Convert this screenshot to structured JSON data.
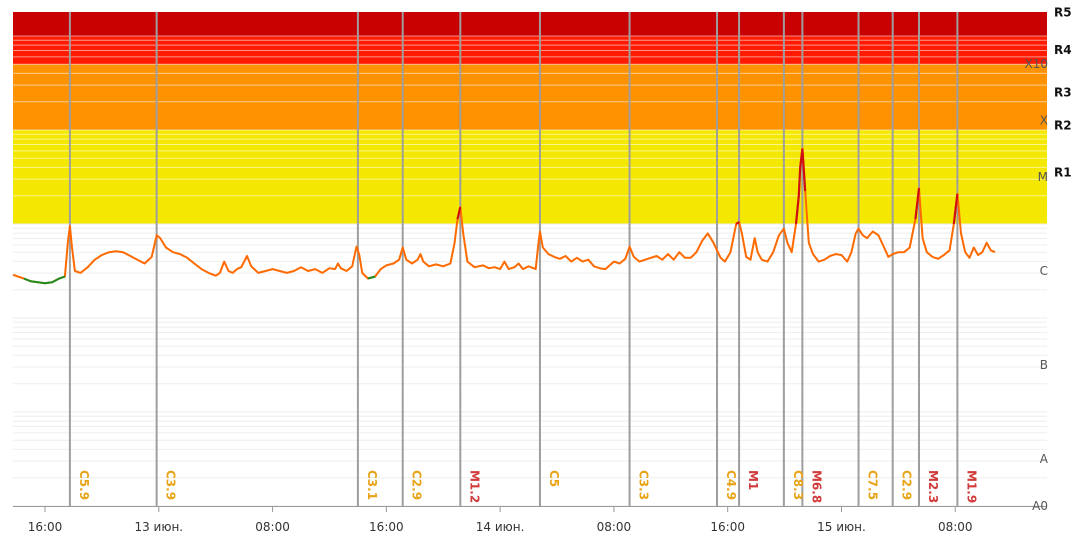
{
  "chart_data": {
    "type": "line",
    "scale": "log",
    "ylim": [
      -8,
      -3
    ],
    "class_labels": [
      {
        "label": "A0",
        "value": -8
      },
      {
        "label": "A",
        "value": -7.5
      },
      {
        "label": "B",
        "value": -6.5
      },
      {
        "label": "C",
        "value": -5.5
      },
      {
        "label": "M",
        "value": -4.5
      },
      {
        "label": "X",
        "value": -3.9
      },
      {
        "label": "X10",
        "value": -3.3
      }
    ],
    "radio_blackout_labels": [
      {
        "label": "R1",
        "value": -4.45
      },
      {
        "label": "R2",
        "value": -3.95
      },
      {
        "label": "R3",
        "value": -3.6
      },
      {
        "label": "R4",
        "value": -3.15
      },
      {
        "label": "R5",
        "value": -2.75
      }
    ],
    "bands": [
      {
        "from": -5.0,
        "to": -4.0,
        "color": "#f5e800"
      },
      {
        "from": -4.0,
        "to": -3.3,
        "color": "#ff9200"
      },
      {
        "from": -3.3,
        "to": -3.0,
        "color": "#ff1a00"
      },
      {
        "from": -3.0,
        "to": -2.4,
        "color": "#c80000"
      }
    ],
    "x_ticks": [
      "16:00",
      "13 июн.",
      "08:00",
      "16:00",
      "14 июн.",
      "08:00",
      "16:00",
      "15 июн.",
      "08:00"
    ],
    "x_tick_hours": [
      16,
      24,
      32,
      40,
      48,
      56,
      64,
      72,
      80
    ],
    "xlim_hours": [
      13.75,
      86.45
    ],
    "flares": [
      {
        "label": "C5.9",
        "t": 17.75,
        "class": "C"
      },
      {
        "label": "C3.9",
        "t": 23.85,
        "class": "C"
      },
      {
        "label": "C3.1",
        "t": 38.0,
        "class": "C"
      },
      {
        "label": "C2.9",
        "t": 41.15,
        "class": "C"
      },
      {
        "label": "M1.2",
        "t": 45.2,
        "class": "M"
      },
      {
        "label": "C5",
        "t": 50.8,
        "class": "C"
      },
      {
        "label": "C3.3",
        "t": 57.1,
        "class": "C"
      },
      {
        "label": "C4.9",
        "t": 63.25,
        "class": "C"
      },
      {
        "label": "M1",
        "t": 64.8,
        "class": "M"
      },
      {
        "label": "C8.3",
        "t": 67.95,
        "class": "C"
      },
      {
        "label": "M6.8",
        "t": 69.25,
        "class": "M"
      },
      {
        "label": "C7.5",
        "t": 73.2,
        "class": "C"
      },
      {
        "label": "C2.9",
        "t": 75.6,
        "class": "C"
      },
      {
        "label": "M2.3",
        "t": 77.45,
        "class": "M"
      },
      {
        "label": "M1.9",
        "t": 80.15,
        "class": "M"
      }
    ],
    "series": [
      {
        "color": "#ff6a00",
        "points": [
          [
            13.75,
            -5.54
          ],
          [
            14.5,
            -5.58
          ],
          [
            15.0,
            -5.61
          ],
          [
            15.5,
            -5.62
          ],
          [
            16.0,
            -5.63
          ],
          [
            16.5,
            -5.62
          ],
          [
            17.0,
            -5.58
          ],
          [
            17.4,
            -5.56
          ],
          [
            17.6,
            -5.2
          ],
          [
            17.75,
            -5.02
          ],
          [
            17.9,
            -5.25
          ],
          [
            18.1,
            -5.5
          ],
          [
            18.5,
            -5.52
          ],
          [
            19.0,
            -5.46
          ],
          [
            19.5,
            -5.38
          ],
          [
            20.0,
            -5.33
          ],
          [
            20.5,
            -5.3
          ],
          [
            21.0,
            -5.29
          ],
          [
            21.5,
            -5.3
          ],
          [
            22.0,
            -5.34
          ],
          [
            22.5,
            -5.38
          ],
          [
            23.0,
            -5.42
          ],
          [
            23.5,
            -5.35
          ],
          [
            23.85,
            -5.12
          ],
          [
            24.1,
            -5.15
          ],
          [
            24.5,
            -5.25
          ],
          [
            25.0,
            -5.3
          ],
          [
            25.5,
            -5.32
          ],
          [
            26.0,
            -5.36
          ],
          [
            26.5,
            -5.42
          ],
          [
            27.0,
            -5.48
          ],
          [
            27.5,
            -5.52
          ],
          [
            28.0,
            -5.55
          ],
          [
            28.3,
            -5.52
          ],
          [
            28.6,
            -5.4
          ],
          [
            28.9,
            -5.5
          ],
          [
            29.2,
            -5.52
          ],
          [
            29.5,
            -5.48
          ],
          [
            29.8,
            -5.46
          ],
          [
            30.2,
            -5.34
          ],
          [
            30.5,
            -5.45
          ],
          [
            31.0,
            -5.52
          ],
          [
            31.5,
            -5.5
          ],
          [
            32.0,
            -5.48
          ],
          [
            32.5,
            -5.5
          ],
          [
            33.0,
            -5.52
          ],
          [
            33.5,
            -5.5
          ],
          [
            34.0,
            -5.46
          ],
          [
            34.5,
            -5.5
          ],
          [
            35.0,
            -5.48
          ],
          [
            35.5,
            -5.52
          ],
          [
            36.0,
            -5.47
          ],
          [
            36.4,
            -5.48
          ],
          [
            36.6,
            -5.42
          ],
          [
            36.8,
            -5.47
          ],
          [
            37.2,
            -5.5
          ],
          [
            37.6,
            -5.45
          ],
          [
            37.9,
            -5.24
          ],
          [
            38.1,
            -5.33
          ],
          [
            38.3,
            -5.52
          ],
          [
            38.7,
            -5.58
          ],
          [
            39.2,
            -5.56
          ],
          [
            39.6,
            -5.48
          ],
          [
            40.0,
            -5.44
          ],
          [
            40.5,
            -5.42
          ],
          [
            40.9,
            -5.38
          ],
          [
            41.15,
            -5.25
          ],
          [
            41.4,
            -5.38
          ],
          [
            41.8,
            -5.42
          ],
          [
            42.2,
            -5.38
          ],
          [
            42.4,
            -5.32
          ],
          [
            42.6,
            -5.4
          ],
          [
            43.0,
            -5.45
          ],
          [
            43.5,
            -5.43
          ],
          [
            44.0,
            -5.45
          ],
          [
            44.5,
            -5.42
          ],
          [
            44.8,
            -5.2
          ],
          [
            45.0,
            -4.95
          ],
          [
            45.2,
            -4.82
          ],
          [
            45.4,
            -5.1
          ],
          [
            45.7,
            -5.4
          ],
          [
            46.2,
            -5.46
          ],
          [
            46.8,
            -5.44
          ],
          [
            47.2,
            -5.47
          ],
          [
            47.6,
            -5.46
          ],
          [
            48.0,
            -5.48
          ],
          [
            48.3,
            -5.4
          ],
          [
            48.6,
            -5.48
          ],
          [
            49.0,
            -5.46
          ],
          [
            49.3,
            -5.42
          ],
          [
            49.6,
            -5.48
          ],
          [
            50.0,
            -5.45
          ],
          [
            50.5,
            -5.48
          ],
          [
            50.7,
            -5.2
          ],
          [
            50.8,
            -5.08
          ],
          [
            51.0,
            -5.25
          ],
          [
            51.4,
            -5.32
          ],
          [
            51.8,
            -5.35
          ],
          [
            52.2,
            -5.37
          ],
          [
            52.6,
            -5.34
          ],
          [
            53.0,
            -5.4
          ],
          [
            53.4,
            -5.36
          ],
          [
            53.8,
            -5.4
          ],
          [
            54.2,
            -5.38
          ],
          [
            54.6,
            -5.45
          ],
          [
            55.0,
            -5.47
          ],
          [
            55.4,
            -5.48
          ],
          [
            55.7,
            -5.44
          ],
          [
            56.0,
            -5.4
          ],
          [
            56.4,
            -5.42
          ],
          [
            56.8,
            -5.37
          ],
          [
            57.1,
            -5.24
          ],
          [
            57.4,
            -5.35
          ],
          [
            57.8,
            -5.4
          ],
          [
            58.2,
            -5.38
          ],
          [
            58.6,
            -5.36
          ],
          [
            59.0,
            -5.34
          ],
          [
            59.4,
            -5.38
          ],
          [
            59.8,
            -5.32
          ],
          [
            60.2,
            -5.38
          ],
          [
            60.6,
            -5.3
          ],
          [
            61.0,
            -5.36
          ],
          [
            61.4,
            -5.36
          ],
          [
            61.8,
            -5.3
          ],
          [
            62.2,
            -5.18
          ],
          [
            62.6,
            -5.1
          ],
          [
            63.0,
            -5.2
          ],
          [
            63.25,
            -5.28
          ],
          [
            63.5,
            -5.36
          ],
          [
            63.8,
            -5.4
          ],
          [
            64.2,
            -5.3
          ],
          [
            64.6,
            -5.0
          ],
          [
            64.8,
            -4.98
          ],
          [
            65.0,
            -5.1
          ],
          [
            65.3,
            -5.35
          ],
          [
            65.6,
            -5.38
          ],
          [
            65.9,
            -5.15
          ],
          [
            66.1,
            -5.3
          ],
          [
            66.4,
            -5.38
          ],
          [
            66.8,
            -5.4
          ],
          [
            67.2,
            -5.3
          ],
          [
            67.6,
            -5.12
          ],
          [
            67.95,
            -5.05
          ],
          [
            68.2,
            -5.2
          ],
          [
            68.5,
            -5.3
          ],
          [
            68.8,
            -5.0
          ],
          [
            69.0,
            -4.7
          ],
          [
            69.1,
            -4.4
          ],
          [
            69.25,
            -4.2
          ],
          [
            69.45,
            -4.65
          ],
          [
            69.7,
            -5.2
          ],
          [
            70.0,
            -5.32
          ],
          [
            70.4,
            -5.4
          ],
          [
            70.8,
            -5.38
          ],
          [
            71.2,
            -5.34
          ],
          [
            71.6,
            -5.32
          ],
          [
            72.0,
            -5.33
          ],
          [
            72.4,
            -5.4
          ],
          [
            72.7,
            -5.3
          ],
          [
            73.0,
            -5.1
          ],
          [
            73.2,
            -5.05
          ],
          [
            73.5,
            -5.12
          ],
          [
            73.8,
            -5.15
          ],
          [
            74.2,
            -5.08
          ],
          [
            74.6,
            -5.12
          ],
          [
            75.0,
            -5.25
          ],
          [
            75.3,
            -5.35
          ],
          [
            75.6,
            -5.32
          ],
          [
            76.0,
            -5.3
          ],
          [
            76.4,
            -5.3
          ],
          [
            76.8,
            -5.25
          ],
          [
            77.2,
            -4.95
          ],
          [
            77.45,
            -4.62
          ],
          [
            77.7,
            -5.15
          ],
          [
            78.0,
            -5.3
          ],
          [
            78.4,
            -5.35
          ],
          [
            78.8,
            -5.37
          ],
          [
            79.2,
            -5.33
          ],
          [
            79.6,
            -5.28
          ],
          [
            79.9,
            -5.0
          ],
          [
            80.15,
            -4.68
          ],
          [
            80.4,
            -5.1
          ],
          [
            80.7,
            -5.3
          ],
          [
            81.0,
            -5.36
          ],
          [
            81.3,
            -5.25
          ],
          [
            81.6,
            -5.33
          ],
          [
            81.9,
            -5.3
          ],
          [
            82.2,
            -5.2
          ],
          [
            82.5,
            -5.28
          ],
          [
            82.8,
            -5.3
          ]
        ]
      }
    ]
  }
}
